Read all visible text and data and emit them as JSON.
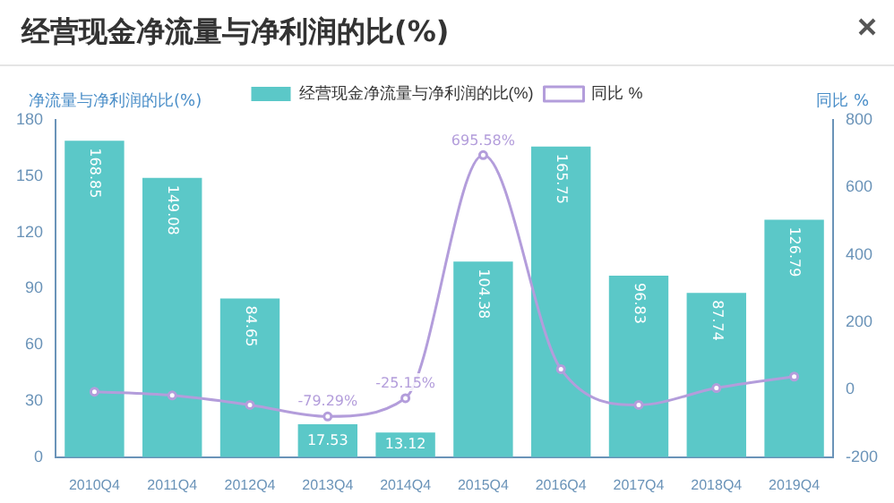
{
  "chart_data": {
    "type": "bar",
    "title": "经营现金净流量与净利润的比(%)",
    "ylabel": "净流量与净利润的比(%)",
    "y2label": "同比 %",
    "categories": [
      "2010Q4",
      "2011Q4",
      "2012Q4",
      "2013Q4",
      "2014Q4",
      "2015Q4",
      "2016Q4",
      "2017Q4",
      "2018Q4",
      "2019Q4"
    ],
    "series": [
      {
        "name": "经营现金净流量与净利润的比(%)",
        "color": "#5bc8c8",
        "values": [
          168.85,
          149.08,
          84.65,
          17.53,
          13.12,
          104.38,
          165.75,
          96.83,
          87.74,
          126.79
        ],
        "value_labels": [
          "168.85",
          "149.08",
          "84.65",
          "17.53",
          "13.12",
          "104.38",
          "165.75",
          "96.83",
          "87.74",
          "126.79"
        ]
      },
      {
        "name": "同比 %",
        "type": "line",
        "axis": "y2",
        "color": "#b39ddb",
        "marker": "circle",
        "values": [
          -6,
          -17,
          -45,
          -79.29,
          -25.15,
          695.58,
          61,
          -45,
          5,
          39
        ],
        "value_labels": [
          null,
          null,
          null,
          "-79.29%",
          "-25.15%",
          "695.58%",
          null,
          null,
          null,
          null
        ]
      }
    ],
    "ylim": [
      0,
      180
    ],
    "yticks": [
      0,
      30,
      60,
      90,
      120,
      150,
      180
    ],
    "y2lim": [
      -200,
      800
    ],
    "y2ticks": [
      -200,
      0,
      200,
      400,
      600,
      800
    ],
    "grid": false,
    "legend": "top"
  }
}
